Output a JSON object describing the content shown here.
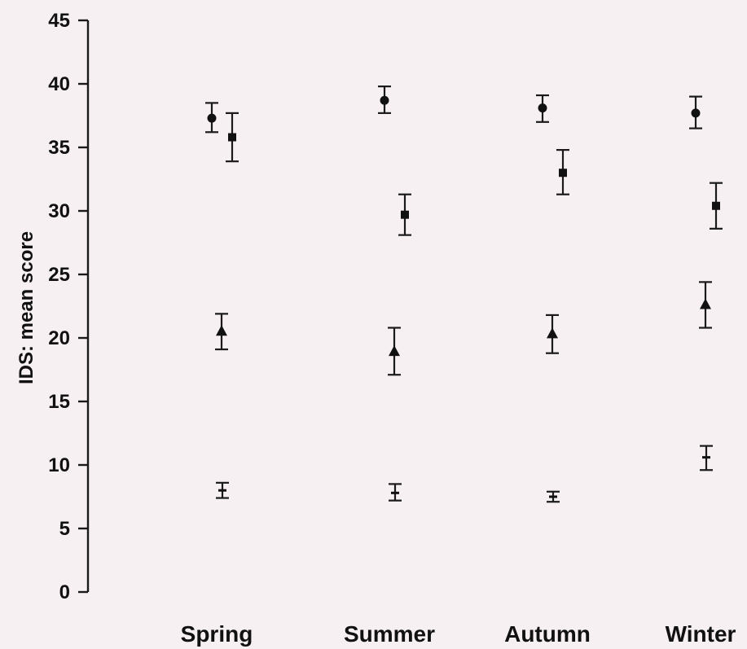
{
  "chart_data": {
    "type": "scatter",
    "title": "",
    "xlabel": "",
    "ylabel": "IDS: mean score",
    "ylim": [
      0,
      45
    ],
    "yticks": [
      0,
      5,
      10,
      15,
      20,
      25,
      30,
      35,
      40,
      45
    ],
    "categories": [
      "Spring",
      "Summer",
      "Autumn",
      "Winter"
    ],
    "grid": false,
    "legend": "none",
    "series": [
      {
        "marker": "circle",
        "values": [
          37.3,
          38.7,
          38.1,
          37.7
        ],
        "error_low": [
          36.2,
          37.7,
          37.0,
          36.5
        ],
        "error_high": [
          38.5,
          39.8,
          39.1,
          39.0
        ]
      },
      {
        "marker": "square",
        "values": [
          35.8,
          29.7,
          33.0,
          30.4
        ],
        "error_low": [
          33.9,
          28.1,
          31.3,
          28.6
        ],
        "error_high": [
          37.7,
          31.3,
          34.8,
          32.2
        ]
      },
      {
        "marker": "triangle",
        "values": [
          20.5,
          18.9,
          20.3,
          22.6
        ],
        "error_low": [
          19.1,
          17.1,
          18.8,
          20.8
        ],
        "error_high": [
          21.9,
          20.8,
          21.8,
          24.4
        ]
      },
      {
        "marker": "dash",
        "values": [
          8.0,
          7.8,
          7.5,
          10.6
        ],
        "error_low": [
          7.4,
          7.2,
          7.1,
          9.6
        ],
        "error_high": [
          8.6,
          8.5,
          7.9,
          11.5
        ]
      }
    ]
  }
}
